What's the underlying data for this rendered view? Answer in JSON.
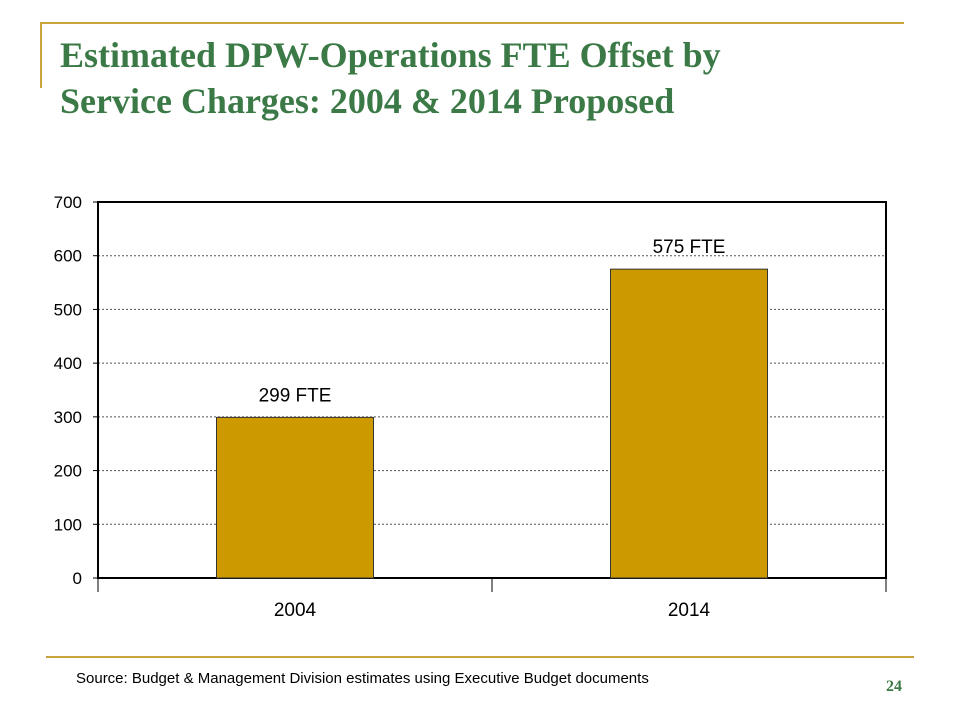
{
  "slide": {
    "title_line1": "Estimated DPW-Operations FTE Offset by",
    "title_line2": "Service Charges: 2004 & 2014 Proposed",
    "source": "Source: Budget & Management Division estimates using Executive Budget documents",
    "page_number": "24"
  },
  "colors": {
    "title": "#3b7a46",
    "frame_accent": "#c9a43b",
    "bar_fill": "#cc9900",
    "bar_stroke": "#333333"
  },
  "chart_data": {
    "type": "bar",
    "title": "",
    "xlabel": "",
    "ylabel": "",
    "categories": [
      "2004",
      "2014"
    ],
    "values": [
      299,
      575
    ],
    "data_labels": [
      "299 FTE",
      "575 FTE"
    ],
    "ylim": [
      0,
      700
    ],
    "yticks": [
      0,
      100,
      200,
      300,
      400,
      500,
      600,
      700
    ],
    "grid": "horizontal dotted",
    "legend": "none"
  }
}
